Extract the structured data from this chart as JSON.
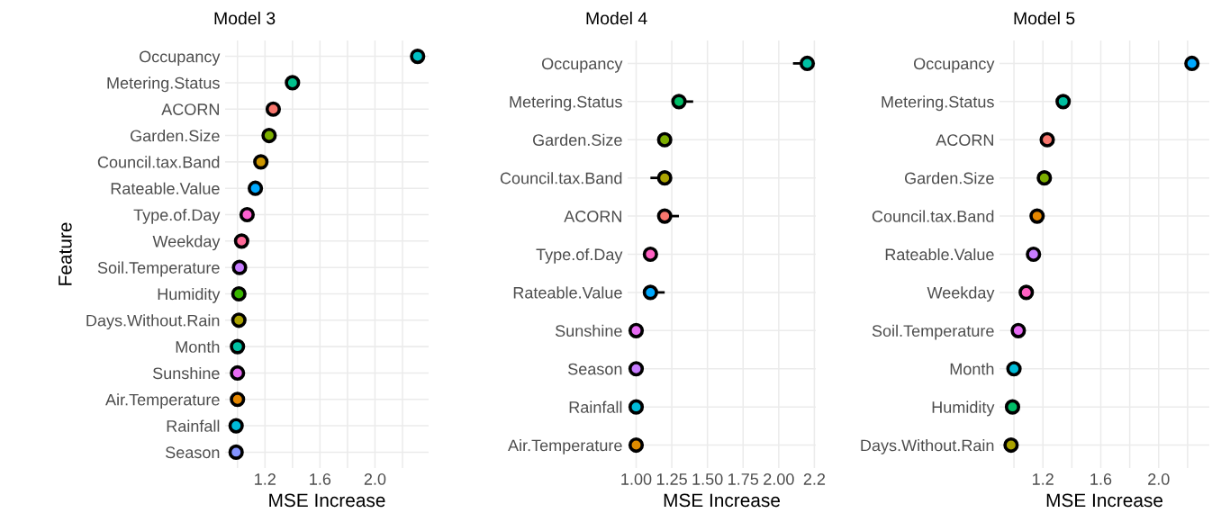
{
  "chart_data": [
    {
      "type": "scatter",
      "orientation": "horizontal",
      "title": "Model 3",
      "xlabel": "MSE Increase",
      "ylabel": "Feature",
      "categories": [
        "Occupancy",
        "Metering.Status",
        "ACORN",
        "Garden.Size",
        "Council.tax.Band",
        "Rateable.Value",
        "Type.of.Day",
        "Weekday",
        "Soil.Temperature",
        "Humidity",
        "Days.Without.Rain",
        "Month",
        "Sunshine",
        "Air.Temperature",
        "Rainfall",
        "Season"
      ],
      "values": [
        2.31,
        1.4,
        1.26,
        1.23,
        1.17,
        1.13,
        1.07,
        1.03,
        1.015,
        1.01,
        1.01,
        1.0,
        1.0,
        1.0,
        0.99,
        0.99
      ],
      "colors": [
        "#00bfc4",
        "#00c08b",
        "#f8766d",
        "#7cae00",
        "#cd9600",
        "#00a9ff",
        "#fd61d1",
        "#ff6a98",
        "#c77cff",
        "#39b600",
        "#aba300",
        "#00c1a3",
        "#e76bf3",
        "#e58700",
        "#00bcd8",
        "#8494ff"
      ],
      "xlim": [
        0.91,
        2.39
      ],
      "xticks": [
        {
          "value": 1.0,
          "label": null
        },
        1.2,
        {
          "value": 1.4,
          "label": null
        },
        1.6,
        {
          "value": 1.8,
          "label": null
        },
        {
          "value": 2.0,
          "label": "2.0"
        },
        {
          "value": 2.2,
          "label": null
        }
      ],
      "grid": true,
      "marker": "circle"
    },
    {
      "type": "scatter",
      "orientation": "horizontal",
      "title": "Model 4",
      "xlabel": "MSE Increase",
      "categories": [
        "Occupancy",
        "Metering.Status",
        "Garden.Size",
        "Council.tax.Band",
        "ACORN",
        "Type.of.Day",
        "Rateable.Value",
        "Sunshine",
        "Season",
        "Rainfall",
        "Air.Temperature"
      ],
      "values": [
        2.2,
        1.3,
        1.2,
        1.2,
        1.2,
        1.1,
        1.1,
        1.0,
        1.0,
        1.0,
        1.0
      ],
      "errors": [
        [
          2.1,
          2.2
        ],
        [
          1.3,
          1.4
        ],
        null,
        [
          1.1,
          1.2
        ],
        [
          1.2,
          1.3
        ],
        null,
        [
          1.1,
          1.2
        ],
        null,
        null,
        null,
        null
      ],
      "colors": [
        "#00c1a3",
        "#00be67",
        "#7cae00",
        "#aba300",
        "#f8766d",
        "#ff61c3",
        "#00a9ff",
        "#e76bf3",
        "#c77cff",
        "#00bcd8",
        "#de8c00"
      ],
      "xlim": [
        0.94,
        2.26
      ],
      "xticks": [
        {
          "value": 1.0,
          "label": "1.00"
        },
        1.25,
        {
          "value": 1.5,
          "label": "1.50"
        },
        1.75,
        {
          "value": 2.0,
          "label": "2.00"
        },
        {
          "value": 2.25,
          "label": "2.2"
        }
      ],
      "grid": true,
      "marker": "circle"
    },
    {
      "type": "scatter",
      "orientation": "horizontal",
      "title": "Model 5",
      "xlabel": "MSE Increase",
      "categories": [
        "Occupancy",
        "Metering.Status",
        "ACORN",
        "Garden.Size",
        "Council.tax.Band",
        "Rateable.Value",
        "Weekday",
        "Soil.Temperature",
        "Month",
        "Humidity",
        "Days.Without.Rain"
      ],
      "values": [
        2.23,
        1.34,
        1.23,
        1.21,
        1.16,
        1.135,
        1.085,
        1.03,
        1.0,
        0.99,
        0.98
      ],
      "colors": [
        "#00a9ff",
        "#00bfa0",
        "#f8766d",
        "#7cae00",
        "#e58700",
        "#c77cff",
        "#ff61c3",
        "#e76bf3",
        "#00bcd8",
        "#00be67",
        "#aba300"
      ],
      "xlim": [
        0.9,
        2.35
      ],
      "xticks": [
        {
          "value": 1.0,
          "label": null
        },
        1.2,
        {
          "value": 1.4,
          "label": null
        },
        1.6,
        {
          "value": 1.8,
          "label": null
        },
        {
          "value": 2.0,
          "label": "2.0"
        },
        {
          "value": 2.2,
          "label": null
        }
      ],
      "grid": true,
      "marker": "circle"
    }
  ]
}
